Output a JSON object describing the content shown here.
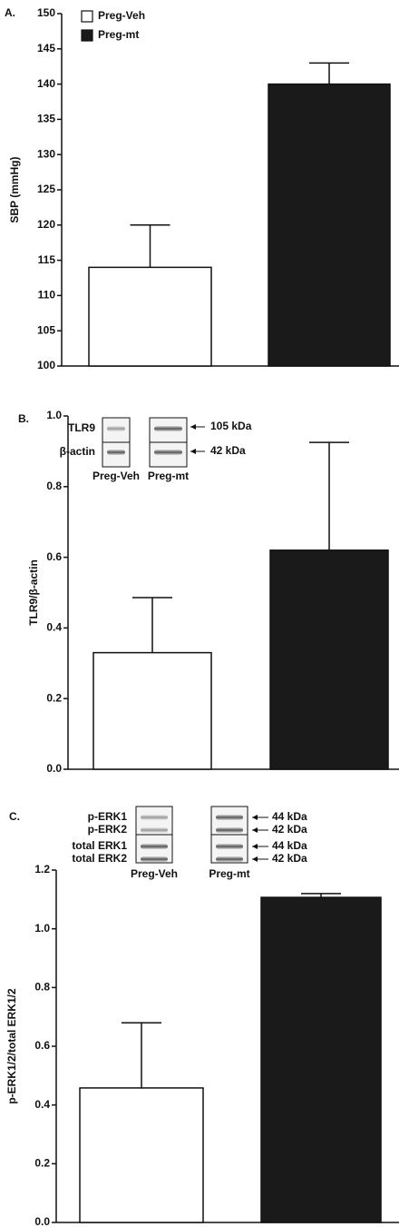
{
  "chart_data": [
    {
      "type": "bar",
      "panel_label": "A.",
      "ylabel": "SBP (mmHg)",
      "ylim": [
        100,
        150
      ],
      "yticks": [
        100,
        105,
        110,
        115,
        120,
        125,
        130,
        135,
        140,
        145,
        150
      ],
      "legend": true,
      "series": [
        {
          "name": "Preg-Veh",
          "color": "#ffffff",
          "values": [
            114
          ],
          "errors": [
            6
          ]
        },
        {
          "name": "Preg-mt",
          "color": "#1a1a1a",
          "values": [
            140
          ],
          "errors": [
            3
          ]
        }
      ]
    },
    {
      "type": "bar",
      "panel_label": "B.",
      "ylabel": "TLR9/β-actin",
      "ylim": [
        0,
        1
      ],
      "yticks": [
        {
          "value": 0,
          "label": "0.0"
        },
        0.2,
        0.4,
        0.6,
        0.8,
        {
          "value": 1,
          "label": "1.0"
        }
      ],
      "legend": false,
      "series": [
        {
          "color": "#ffffff",
          "values": [
            0.33
          ],
          "errors": [
            0.156
          ]
        },
        {
          "color": "#1a1a1a",
          "values": [
            0.62
          ],
          "errors": [
            0.305
          ]
        }
      ],
      "blot": {
        "row_labels": [
          "TLR9",
          "β-actin"
        ],
        "lane_labels": [
          "Preg-Veh",
          "Preg-mt"
        ],
        "size_labels": [
          "105 kDa",
          "42 kDa"
        ]
      }
    },
    {
      "type": "bar",
      "panel_label": "C.",
      "ylabel": "p-ERK1/2/total ERK1/2",
      "ylim": [
        0,
        1.2
      ],
      "yticks": [
        {
          "value": 0,
          "label": "0.0"
        },
        0.2,
        0.4,
        0.6,
        0.8,
        {
          "value": 1,
          "label": "1.0"
        },
        1.2
      ],
      "legend": false,
      "series": [
        {
          "color": "#ffffff",
          "values": [
            0.458
          ],
          "errors": [
            0.222
          ]
        },
        {
          "color": "#1a1a1a",
          "values": [
            1.107
          ],
          "errors": [
            0.013
          ]
        }
      ],
      "blot": {
        "row_labels": [
          "p-ERK1",
          "p-ERK2",
          "total ERK1",
          "total ERK2"
        ],
        "lane_labels": [
          "Preg-Veh",
          "Preg-mt"
        ],
        "size_labels": [
          "44 kDa",
          "42 kDa",
          "44 kDa",
          "42 kDa"
        ]
      }
    }
  ]
}
